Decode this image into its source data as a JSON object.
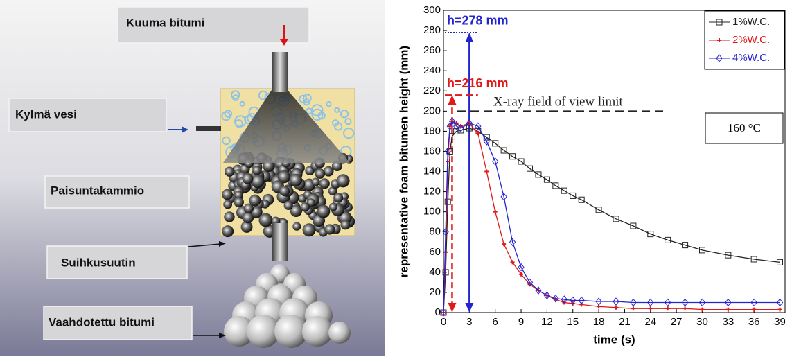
{
  "diagram": {
    "labels": [
      "Kuuma bitumi",
      "Kylmä vesi",
      "Paisuntakammio",
      "Suihkusuutin",
      "Vaahdotettu bitumi"
    ]
  },
  "chart_data": {
    "type": "line",
    "xlabel": "time (s)",
    "ylabel": "representative foam bitumen height (mm)",
    "x": [
      0,
      0.25,
      0.5,
      0.75,
      1,
      1.5,
      2,
      3,
      4,
      5,
      6,
      7,
      8,
      9,
      10,
      11,
      12,
      13,
      14,
      15,
      16,
      18,
      20,
      22,
      24,
      26,
      28,
      30,
      33,
      36,
      39
    ],
    "series": [
      {
        "name": "1%W.C.",
        "color": "#222222",
        "marker": "square",
        "values": [
          0,
          40,
          110,
          160,
          175,
          180,
          181,
          183,
          180,
          174,
          168,
          161,
          155,
          150,
          143,
          137,
          132,
          126,
          121,
          116,
          112,
          102,
          93,
          86,
          78,
          72,
          67,
          62,
          57,
          53,
          50
        ]
      },
      {
        "name": "2%W.C.",
        "color": "#e0191b",
        "marker": "star",
        "values": [
          0,
          60,
          150,
          185,
          190,
          188,
          185,
          188,
          178,
          140,
          100,
          68,
          50,
          38,
          28,
          22,
          17,
          13,
          10,
          9,
          8,
          6,
          5,
          4,
          4,
          4,
          4,
          3,
          3,
          3,
          3
        ]
      },
      {
        "name": "4%W.C.",
        "color": "#2323d0",
        "marker": "diamond",
        "values": [
          0,
          80,
          160,
          185,
          190,
          185,
          183,
          188,
          185,
          170,
          150,
          115,
          70,
          45,
          30,
          22,
          17,
          14,
          13,
          12,
          12,
          11,
          11,
          10,
          10,
          10,
          10,
          10,
          10,
          10,
          10
        ]
      }
    ],
    "xlim": [
      0,
      39.6
    ],
    "ylim": [
      0,
      300
    ],
    "xticks": [
      0,
      3,
      6,
      9,
      12,
      15,
      18,
      21,
      24,
      27,
      30,
      33,
      36,
      39
    ],
    "yticks": [
      0,
      20,
      40,
      60,
      80,
      100,
      120,
      140,
      160,
      180,
      200,
      220,
      240,
      260,
      280,
      300
    ],
    "legend": "top-right",
    "annotations": [
      {
        "text": "h=278 mm",
        "y": 278,
        "color": "#2323d0"
      },
      {
        "text": "h=216 mm",
        "y": 216,
        "color": "#e0191b"
      },
      {
        "text": "X-ray field of view limit",
        "y": 200,
        "color": "#222222"
      }
    ],
    "note": "160 °C"
  }
}
